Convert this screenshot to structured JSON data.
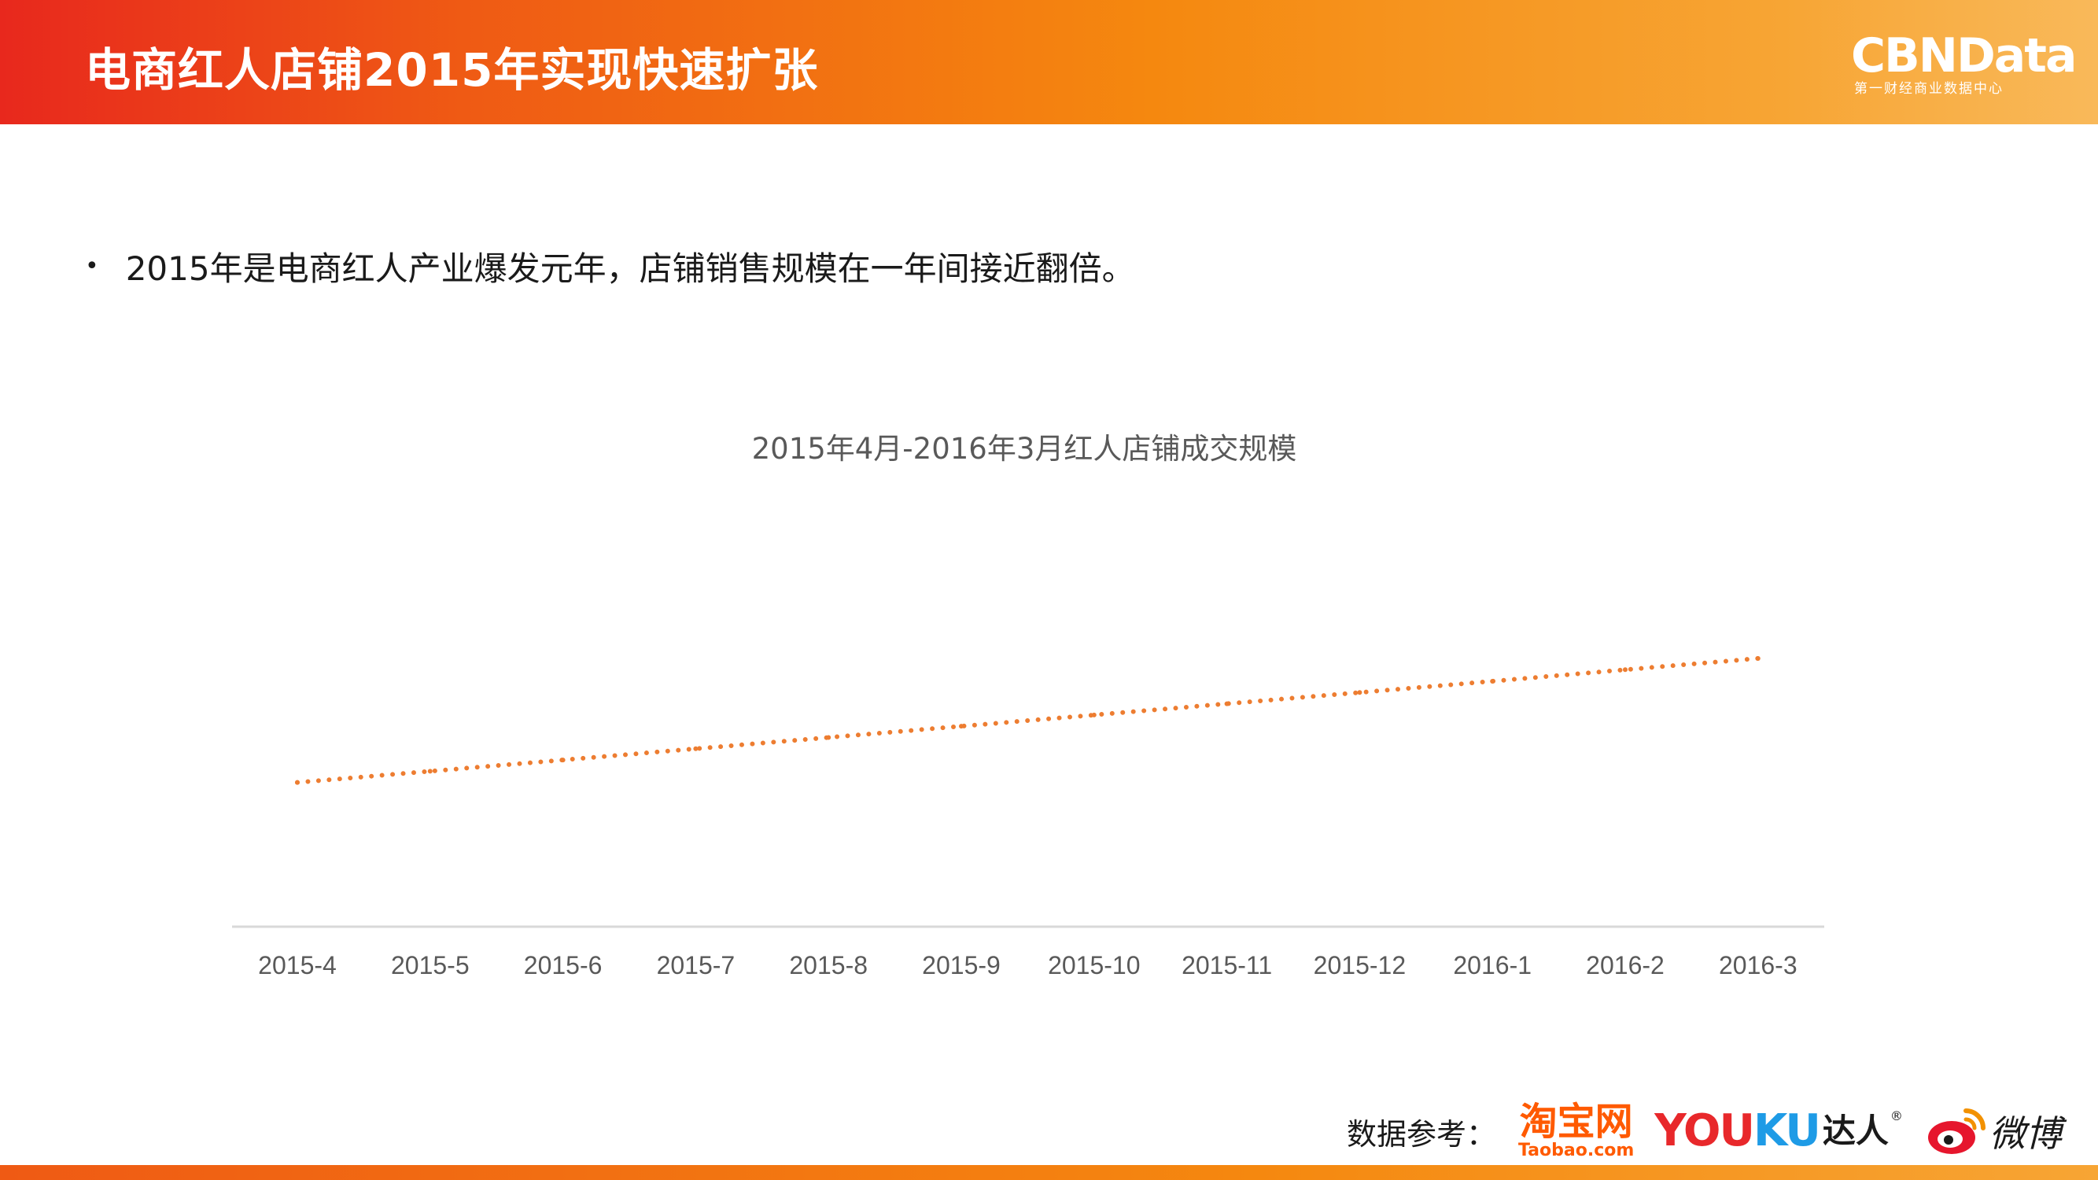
{
  "header": {
    "title": "电商红人店铺2015年实现快速扩张",
    "brand": {
      "name": "CBNData",
      "tagline": "第一财经商业数据中心"
    }
  },
  "bullet": {
    "text": "2015年是电商红人产业爆发元年，店铺销售规模在一年间接近翻倍。"
  },
  "chart_data": {
    "type": "line",
    "title": "2015年4月-2016年3月红人店铺成交规模",
    "categories": [
      "2015-4",
      "2015-5",
      "2015-6",
      "2015-7",
      "2015-8",
      "2015-9",
      "2015-10",
      "2015-11",
      "2015-12",
      "2016-1",
      "2016-2",
      "2016-3"
    ],
    "series": [
      {
        "values": [
          50,
          53.9,
          57.8,
          61.7,
          65.6,
          69.5,
          73.4,
          77.3,
          81.2,
          85.1,
          89.1,
          93
        ],
        "color": "#ed7d31",
        "style": "dotted"
      }
    ],
    "ylim": [
      0,
      150
    ],
    "xlabel": "",
    "ylabel": "",
    "grid": false,
    "y_axis_visible": false
  },
  "footer": {
    "sources_label": "数据参考：",
    "logos": {
      "taobao": "淘宝网",
      "taobao_domain": "Taobao.com",
      "youku": "YOUKU",
      "youku_suffix": "达人",
      "registered": "®",
      "weibo": "微博"
    },
    "colors": {
      "taobao": "#ff5a00",
      "youku_you": "#e8282b",
      "youku_ku": "#1e9be6",
      "weibo": "#e6162d"
    }
  }
}
